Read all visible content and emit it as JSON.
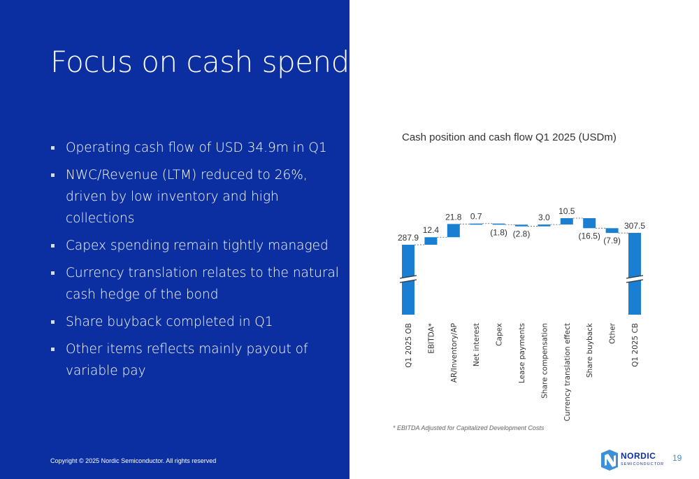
{
  "slide": {
    "title": "Focus on cash spending",
    "bullets": [
      "Operating cash flow of USD 34.9m in Q1",
      "NWC/Revenue (LTM) reduced to 26%, driven by low inventory and high collections",
      "Capex spending remain tightly managed",
      "Currency translation relates to the natural cash hedge of the bond",
      "Share buyback completed in Q1",
      "Other items reflects mainly payout of variable pay"
    ],
    "copyright": "Copyright © 2025 Nordic Semiconductor. All rights reserved",
    "footnote": "* EBITDA Adjusted for Capitalized Development Costs",
    "page_number": "19",
    "logo_word": "NORDIC",
    "logo_sub": "SEMICONDUCTOR"
  },
  "colors": {
    "left_panel": "#0b2fa0",
    "bar": "#1a7fd0",
    "text_dark": "#333333"
  },
  "chart_data": {
    "type": "bar",
    "subtype": "waterfall",
    "title": "Cash position and cash flow Q1 2025 (USDm)",
    "categories": [
      "Q1 2025 OB",
      "EBITDA*",
      "AR/Inventory/AP",
      "Net interest",
      "Capex",
      "Lease payments",
      "Share compensation",
      "Currency translation effect",
      "Share buyback",
      "Other",
      "Q1 2025 CB"
    ],
    "values": [
      287.9,
      12.4,
      21.8,
      0.7,
      -1.8,
      -2.8,
      3.0,
      10.5,
      -16.5,
      -7.9,
      307.5
    ],
    "kinds": [
      "total",
      "delta",
      "delta",
      "delta",
      "delta",
      "delta",
      "delta",
      "delta",
      "delta",
      "delta",
      "total"
    ],
    "labels": [
      "287.9",
      "12.4",
      "21.8",
      "0.7",
      "(1.8)",
      "(2.8)",
      "3.0",
      "10.5",
      "(16.5)",
      "(7.9)",
      "307.5"
    ],
    "axis_break": true,
    "ylim": [
      287.9,
      331.7
    ]
  }
}
